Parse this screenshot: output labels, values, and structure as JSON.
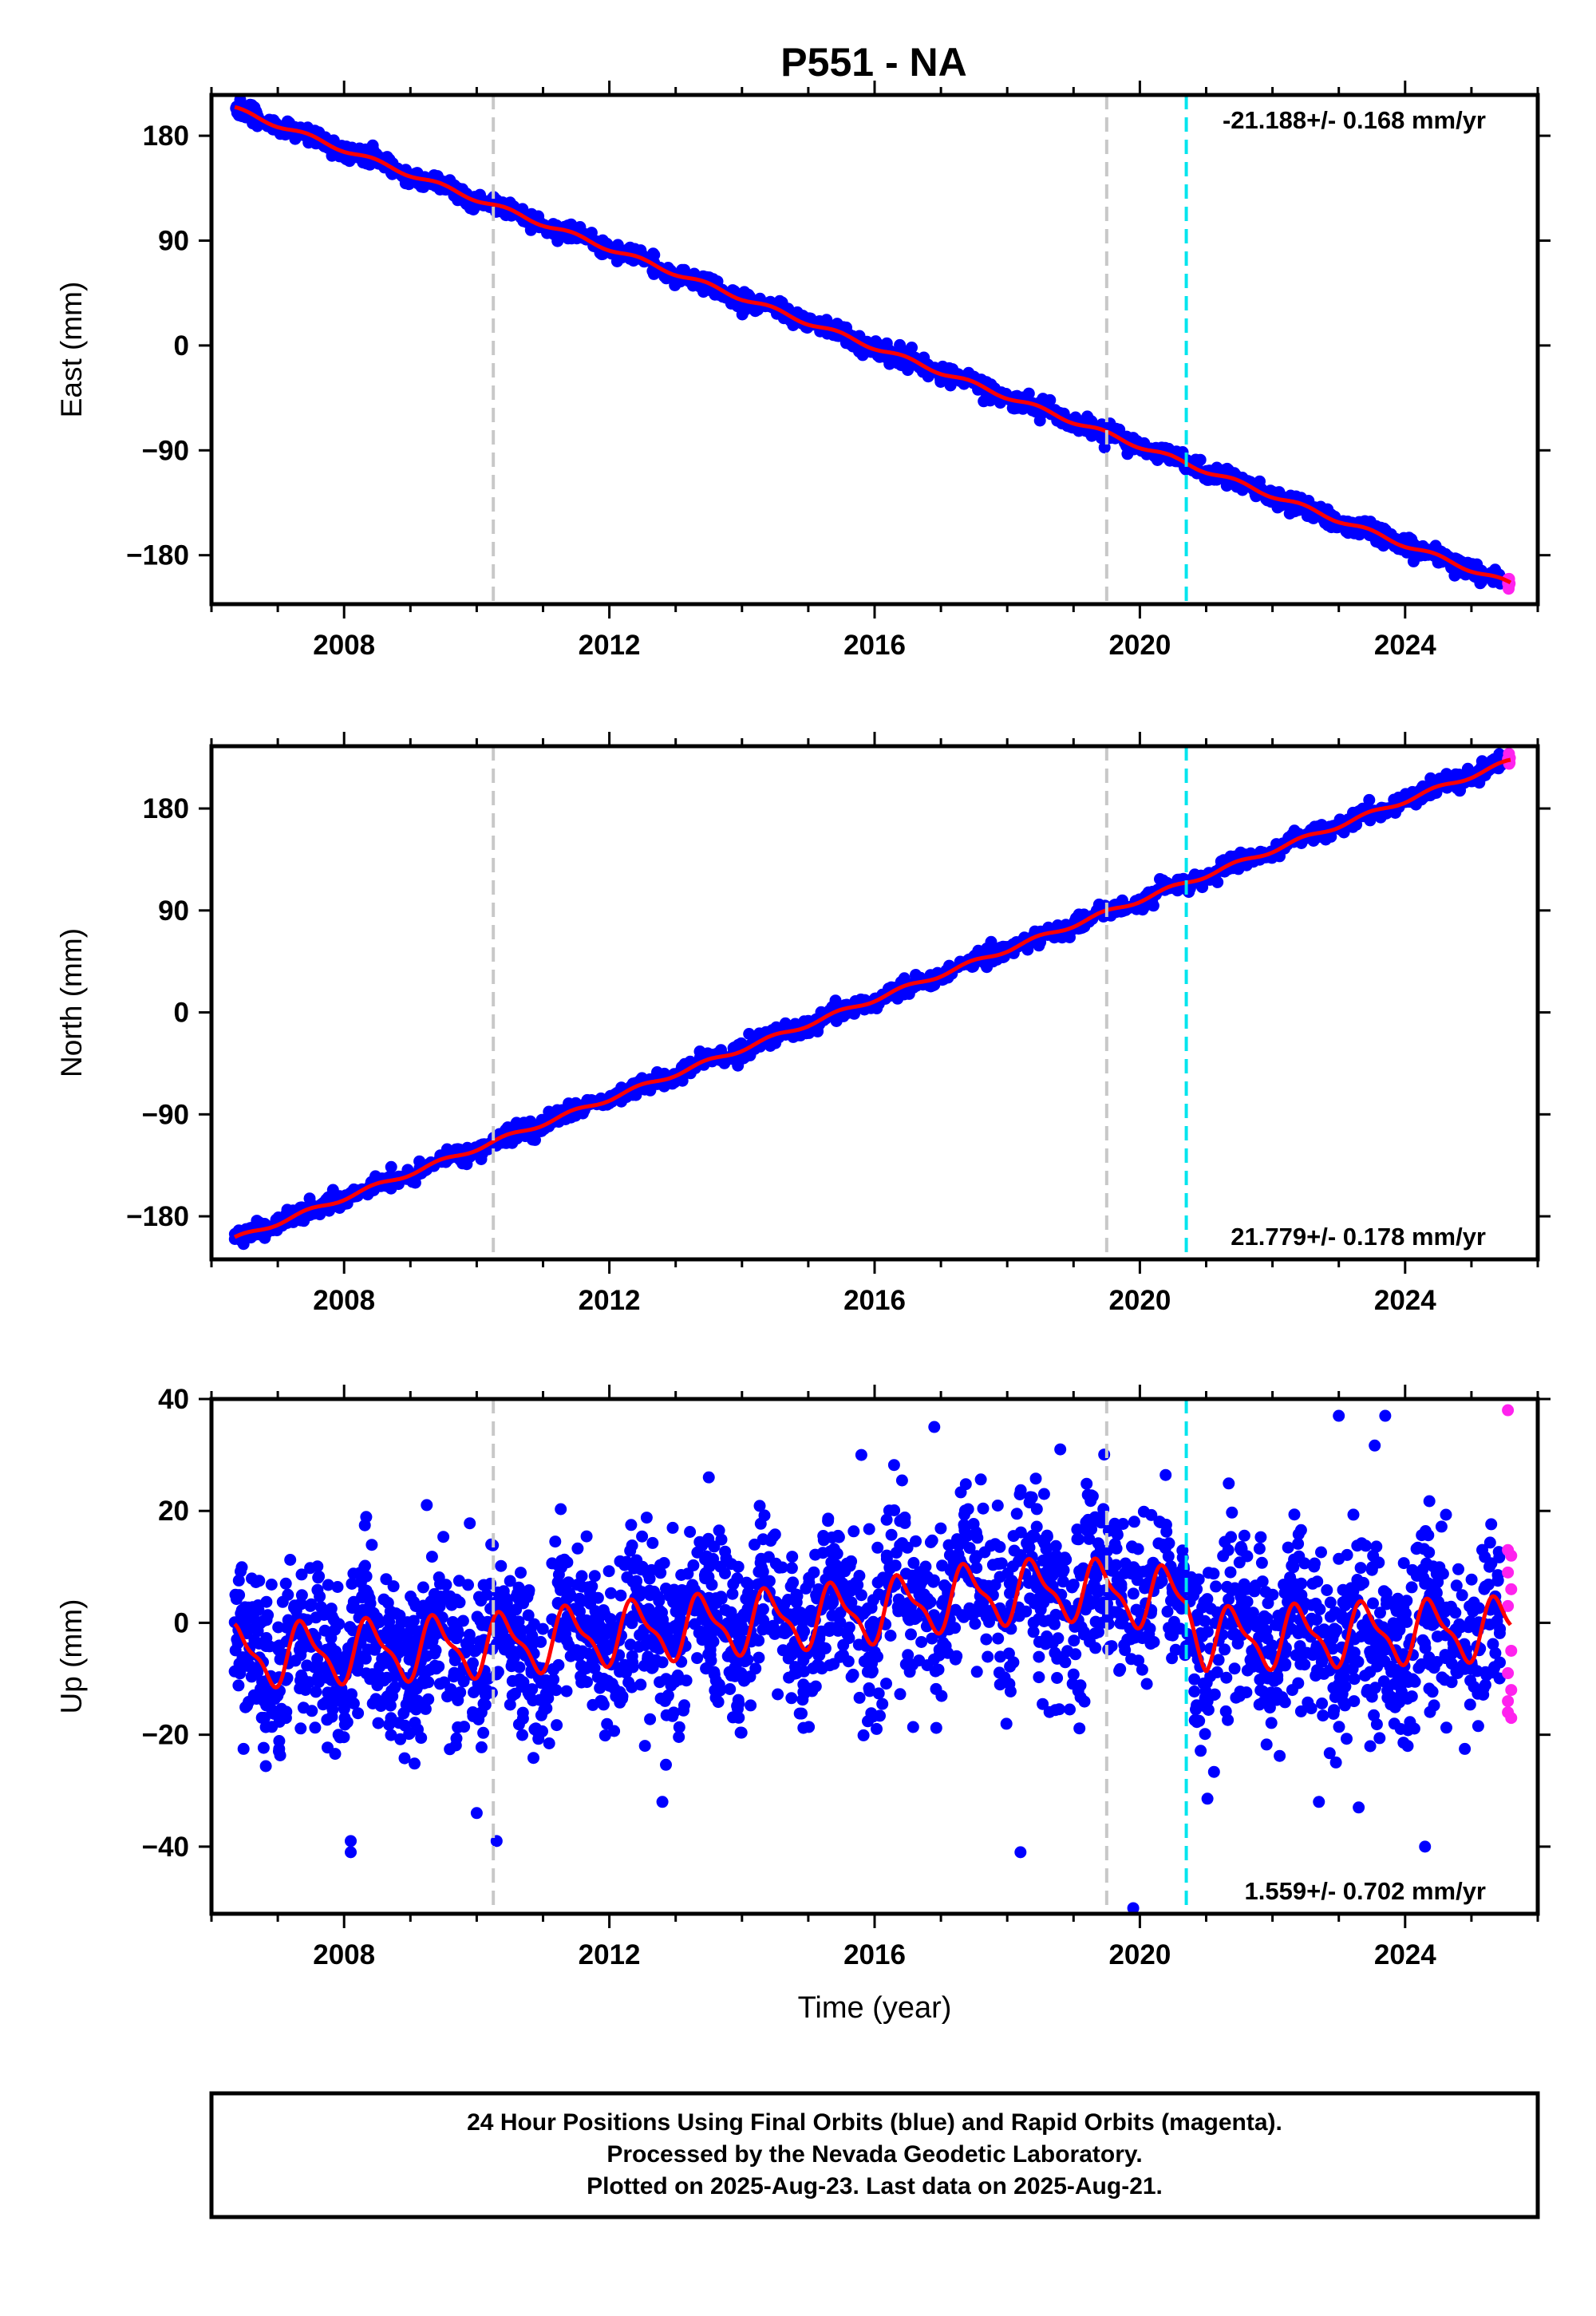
{
  "title": "P551 - NA",
  "chart_data": [
    {
      "type": "scatter",
      "panel": "east",
      "ylabel": "East (mm)",
      "xlabel": "",
      "xlim": [
        2006.0,
        2026.0
      ],
      "ylim": [
        -222,
        215
      ],
      "xticks": [
        2008,
        2012,
        2016,
        2020,
        2024
      ],
      "xtick_labels": [
        "2008",
        "2012",
        "2016",
        "2020",
        "2024"
      ],
      "yticks": [
        180,
        90,
        0,
        -90,
        -180
      ],
      "ytick_labels": [
        "180",
        "90",
        "0",
        "−90",
        "−180"
      ],
      "rate_text": "-21.188+/- 0.168 mm/yr",
      "rate_position": "top-right",
      "trend": {
        "start": [
          2006.35,
          203
        ],
        "end": [
          2025.6,
          -205
        ]
      },
      "series": [
        {
          "role": "final_orbits",
          "color": "#0000ff"
        },
        {
          "role": "rapid_orbits",
          "color": "#ff22ee"
        },
        {
          "role": "model",
          "color": "#ff0000"
        }
      ],
      "vlines": [
        {
          "x": 2010.25,
          "color": "#c8c8c8"
        },
        {
          "x": 2019.5,
          "color": "#c8c8c8"
        },
        {
          "x": 2020.7,
          "color": "#00e5ee"
        }
      ]
    },
    {
      "type": "scatter",
      "panel": "north",
      "ylabel": "North (mm)",
      "xlabel": "",
      "xlim": [
        2006.0,
        2026.0
      ],
      "ylim": [
        -218,
        235
      ],
      "xticks": [
        2008,
        2012,
        2016,
        2020,
        2024
      ],
      "xtick_labels": [
        "2008",
        "2012",
        "2016",
        "2020",
        "2024"
      ],
      "yticks": [
        180,
        90,
        0,
        -90,
        -180
      ],
      "ytick_labels": [
        "180",
        "90",
        "0",
        "−90",
        "−180"
      ],
      "rate_text": "21.779+/- 0.178 mm/yr",
      "rate_position": "bottom-right",
      "trend": {
        "start": [
          2006.35,
          -200
        ],
        "end": [
          2025.6,
          222
        ]
      },
      "series": [
        {
          "role": "final_orbits",
          "color": "#0000ff"
        },
        {
          "role": "rapid_orbits",
          "color": "#ff22ee"
        },
        {
          "role": "model",
          "color": "#ff0000"
        }
      ],
      "vlines": [
        {
          "x": 2010.25,
          "color": "#c8c8c8"
        },
        {
          "x": 2019.5,
          "color": "#c8c8c8"
        },
        {
          "x": 2020.7,
          "color": "#00e5ee"
        }
      ]
    },
    {
      "type": "scatter",
      "panel": "up",
      "ylabel": "Up (mm)",
      "xlabel": "Time (year)",
      "xlim": [
        2006.0,
        2026.0
      ],
      "ylim": [
        -52,
        40
      ],
      "xticks": [
        2008,
        2012,
        2016,
        2020,
        2024
      ],
      "xtick_labels": [
        "2008",
        "2012",
        "2016",
        "2020",
        "2024"
      ],
      "yticks": [
        40,
        20,
        0,
        -20,
        -40
      ],
      "ytick_labels": [
        "40",
        "20",
        "0",
        "−20",
        "−40"
      ],
      "rate_text": "1.559+/- 0.702 mm/yr",
      "rate_position": "bottom-right",
      "model_baseline": [
        [
          2006.35,
          -6
        ],
        [
          2010.25,
          -4
        ],
        [
          2012.0,
          -2
        ],
        [
          2016.0,
          2
        ],
        [
          2017.5,
          5
        ],
        [
          2019.0,
          6
        ],
        [
          2020.7,
          4
        ],
        [
          2021.0,
          -3
        ],
        [
          2025.6,
          -1
        ]
      ],
      "seasonal_amplitude_mm": 5,
      "outliers": [
        [
          2008.1,
          -41
        ],
        [
          2008.1,
          -39
        ],
        [
          2010.0,
          -34
        ],
        [
          2010.3,
          -39
        ],
        [
          2018.2,
          -41
        ],
        [
          2019.9,
          -51
        ],
        [
          2024.3,
          -40
        ],
        [
          2012.8,
          -32
        ],
        [
          2022.7,
          -32
        ],
        [
          2023.3,
          -33
        ],
        [
          2013.5,
          26
        ],
        [
          2015.8,
          30
        ],
        [
          2016.9,
          35
        ],
        [
          2018.8,
          31
        ],
        [
          2023.0,
          37
        ],
        [
          2023.7,
          37
        ]
      ],
      "rapid_points": [
        [
          2025.55,
          38
        ],
        [
          2025.55,
          13
        ],
        [
          2025.55,
          9
        ],
        [
          2025.6,
          6
        ],
        [
          2025.55,
          3
        ],
        [
          2025.6,
          -5
        ],
        [
          2025.55,
          -9
        ],
        [
          2025.6,
          -12
        ],
        [
          2025.55,
          -16
        ],
        [
          2025.6,
          -17
        ],
        [
          2025.55,
          -14
        ],
        [
          2025.6,
          12
        ]
      ],
      "series": [
        {
          "role": "final_orbits",
          "color": "#0000ff"
        },
        {
          "role": "rapid_orbits",
          "color": "#ff22ee"
        },
        {
          "role": "model",
          "color": "#ff0000"
        }
      ],
      "vlines": [
        {
          "x": 2010.25,
          "color": "#c8c8c8"
        },
        {
          "x": 2019.5,
          "color": "#c8c8c8"
        },
        {
          "x": 2020.7,
          "color": "#00e5ee"
        }
      ]
    }
  ],
  "footer": {
    "line1": "24 Hour Positions Using Final Orbits (blue) and Rapid Orbits (magenta).",
    "line2": "Processed by the Nevada Geodetic Laboratory.",
    "line3": "Plotted on 2025-Aug-23. Last data on 2025-Aug-21."
  }
}
